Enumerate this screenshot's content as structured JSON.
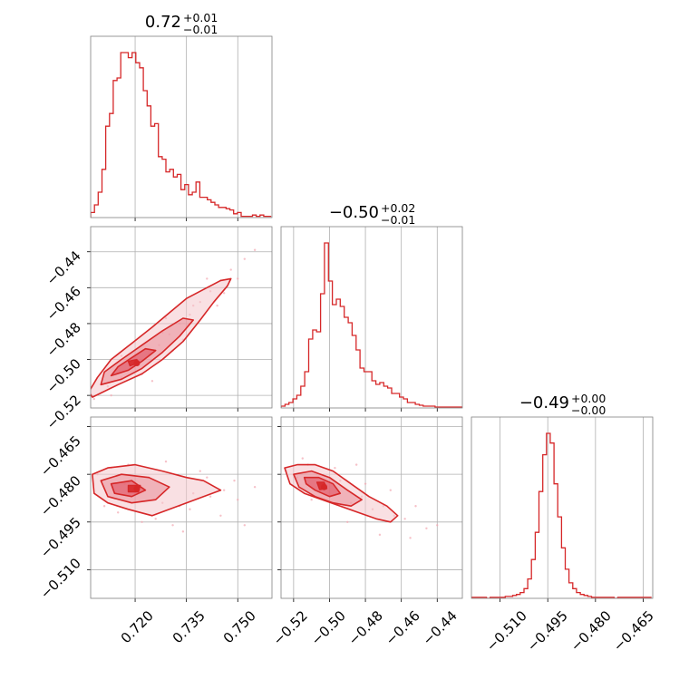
{
  "figure": {
    "type": "corner",
    "color": "#d62728",
    "fill_color": "#f4c6cc"
  },
  "chart_data": [
    {
      "id": "hist_p0",
      "type": "bar",
      "title": {
        "value": "0.72",
        "sup": "+0.01",
        "sub": "−0.01"
      },
      "xlim": [
        0.707,
        0.76
      ],
      "grid_x": [
        0.72,
        0.735,
        0.75
      ],
      "x_start": 0.707,
      "bin_width": 0.0011,
      "values": [
        4,
        10,
        20,
        38,
        72,
        82,
        108,
        110,
        130,
        130,
        126,
        130,
        122,
        118,
        100,
        88,
        72,
        74,
        48,
        46,
        36,
        38,
        32,
        34,
        22,
        26,
        18,
        20,
        28,
        16,
        16,
        14,
        12,
        10,
        8,
        8,
        7,
        6,
        3,
        4,
        1,
        1,
        1,
        2,
        1,
        2,
        1,
        1
      ]
    },
    {
      "id": "hist_p1",
      "type": "bar",
      "title": {
        "value": "−0.50",
        "sup": "+0.02",
        "sub": "−0.01"
      },
      "xlim": [
        -0.527,
        -0.426
      ],
      "grid_x": [
        -0.52,
        -0.5,
        -0.48,
        -0.46,
        -0.44
      ],
      "x_start": -0.527,
      "bin_width": 0.0022,
      "values": [
        2,
        4,
        6,
        10,
        14,
        24,
        40,
        76,
        86,
        84,
        126,
        182,
        140,
        114,
        120,
        112,
        100,
        94,
        80,
        64,
        44,
        40,
        40,
        30,
        26,
        28,
        24,
        22,
        16,
        16,
        12,
        10,
        6,
        6,
        4,
        3,
        2,
        2,
        2,
        1,
        1,
        1,
        1,
        1,
        1,
        1
      ]
    },
    {
      "id": "hist_p2",
      "type": "bar",
      "title": {
        "value": "−0.49",
        "sup": "+0.00",
        "sub": "−0.00"
      },
      "xlim": [
        -0.519,
        -0.462
      ],
      "grid_x": [
        -0.51,
        -0.495,
        -0.48,
        -0.465
      ],
      "x_start": -0.519,
      "bin_width": 0.00118,
      "values": [
        1,
        1,
        1,
        1,
        0,
        1,
        1,
        1,
        1,
        2,
        2,
        3,
        4,
        6,
        10,
        20,
        40,
        68,
        110,
        148,
        170,
        160,
        118,
        84,
        52,
        30,
        16,
        10,
        6,
        4,
        3,
        2,
        1,
        1,
        1,
        1,
        1,
        1,
        0,
        1,
        1,
        1,
        1,
        1,
        1,
        1,
        1,
        1
      ]
    },
    {
      "id": "scatter_p0_p1",
      "type": "scatter",
      "xlim": [
        0.707,
        0.76
      ],
      "ylim": [
        -0.527,
        -0.426
      ],
      "grid_x": [
        0.72,
        0.735,
        0.75
      ],
      "grid_y": [
        -0.44,
        -0.46,
        -0.48,
        -0.5,
        -0.52
      ],
      "mean": [
        0.7205,
        -0.502
      ],
      "points": [
        [
          0.708,
          -0.522
        ],
        [
          0.712,
          -0.515
        ],
        [
          0.716,
          -0.51
        ],
        [
          0.719,
          -0.505
        ],
        [
          0.721,
          -0.503
        ],
        [
          0.724,
          -0.497
        ],
        [
          0.727,
          -0.492
        ],
        [
          0.73,
          -0.486
        ],
        [
          0.733,
          -0.48
        ],
        [
          0.736,
          -0.475
        ],
        [
          0.739,
          -0.468
        ],
        [
          0.742,
          -0.462
        ],
        [
          0.745,
          -0.456
        ],
        [
          0.748,
          -0.45
        ],
        [
          0.752,
          -0.444
        ],
        [
          0.755,
          -0.439
        ],
        [
          0.718,
          -0.5
        ],
        [
          0.722,
          -0.508
        ],
        [
          0.728,
          -0.485
        ],
        [
          0.731,
          -0.495
        ],
        [
          0.737,
          -0.47
        ],
        [
          0.744,
          -0.47
        ],
        [
          0.741,
          -0.455
        ],
        [
          0.75,
          -0.455
        ],
        [
          0.713,
          -0.52
        ],
        [
          0.725,
          -0.512
        ],
        [
          0.734,
          -0.489
        ],
        [
          0.729,
          -0.477
        ],
        [
          0.746,
          -0.463
        ],
        [
          0.716,
          -0.498
        ]
      ],
      "contours": [
        {
          "level": "outer",
          "points": [
            [
              0.7075,
              -0.521
            ],
            [
              0.715,
              -0.514
            ],
            [
              0.722,
              -0.508
            ],
            [
              0.728,
              -0.5
            ],
            [
              0.734,
              -0.49
            ],
            [
              0.739,
              -0.478
            ],
            [
              0.743,
              -0.468
            ],
            [
              0.747,
              -0.459
            ],
            [
              0.748,
              -0.455
            ],
            [
              0.745,
              -0.456
            ],
            [
              0.74,
              -0.461
            ],
            [
              0.735,
              -0.466
            ],
            [
              0.73,
              -0.474
            ],
            [
              0.725,
              -0.482
            ],
            [
              0.719,
              -0.491
            ],
            [
              0.713,
              -0.5
            ],
            [
              0.709,
              -0.51
            ],
            [
              0.7065,
              -0.518
            ]
          ]
        },
        {
          "level": "mid",
          "points": [
            [
              0.71,
              -0.514
            ],
            [
              0.716,
              -0.511
            ],
            [
              0.722,
              -0.505
            ],
            [
              0.728,
              -0.496
            ],
            [
              0.733,
              -0.487
            ],
            [
              0.737,
              -0.478
            ],
            [
              0.734,
              -0.477
            ],
            [
              0.728,
              -0.484
            ],
            [
              0.722,
              -0.492
            ],
            [
              0.716,
              -0.5
            ],
            [
              0.711,
              -0.507
            ]
          ]
        },
        {
          "level": "inner",
          "points": [
            [
              0.713,
              -0.509
            ],
            [
              0.718,
              -0.506
            ],
            [
              0.722,
              -0.501
            ],
            [
              0.726,
              -0.495
            ],
            [
              0.723,
              -0.494
            ],
            [
              0.719,
              -0.499
            ],
            [
              0.715,
              -0.504
            ]
          ]
        },
        {
          "level": "core",
          "points": [
            [
              0.7185,
              -0.5035
            ],
            [
              0.721,
              -0.502
            ],
            [
              0.7205,
              -0.5
            ],
            [
              0.718,
              -0.501
            ]
          ]
        }
      ]
    },
    {
      "id": "scatter_p0_p2",
      "type": "scatter",
      "xlim": [
        0.707,
        0.76
      ],
      "ylim": [
        -0.519,
        -0.462
      ],
      "grid_x": [
        0.72,
        0.735,
        0.75
      ],
      "grid_y": [
        -0.465,
        -0.48,
        -0.495,
        -0.51
      ],
      "mean": [
        0.7205,
        -0.4845
      ],
      "points": [
        [
          0.709,
          -0.48
        ],
        [
          0.713,
          -0.478
        ],
        [
          0.717,
          -0.483
        ],
        [
          0.72,
          -0.486
        ],
        [
          0.724,
          -0.481
        ],
        [
          0.728,
          -0.489
        ],
        [
          0.733,
          -0.49
        ],
        [
          0.737,
          -0.486
        ],
        [
          0.742,
          -0.487
        ],
        [
          0.746,
          -0.485
        ],
        [
          0.75,
          -0.488
        ],
        [
          0.755,
          -0.484
        ],
        [
          0.711,
          -0.49
        ],
        [
          0.715,
          -0.492
        ],
        [
          0.726,
          -0.494
        ],
        [
          0.731,
          -0.496
        ],
        [
          0.736,
          -0.491
        ],
        [
          0.741,
          -0.481
        ],
        [
          0.745,
          -0.493
        ],
        [
          0.749,
          -0.482
        ],
        [
          0.752,
          -0.496
        ],
        [
          0.729,
          -0.476
        ],
        [
          0.718,
          -0.477
        ],
        [
          0.722,
          -0.495
        ],
        [
          0.739,
          -0.479
        ],
        [
          0.734,
          -0.498
        ]
      ],
      "contours": [
        {
          "level": "outer",
          "points": [
            [
              0.7075,
              -0.48
            ],
            [
              0.712,
              -0.478
            ],
            [
              0.72,
              -0.477
            ],
            [
              0.728,
              -0.479
            ],
            [
              0.735,
              -0.481
            ],
            [
              0.74,
              -0.482
            ],
            [
              0.745,
              -0.485
            ],
            [
              0.74,
              -0.487
            ],
            [
              0.735,
              -0.489
            ],
            [
              0.73,
              -0.491
            ],
            [
              0.725,
              -0.493
            ],
            [
              0.718,
              -0.491
            ],
            [
              0.712,
              -0.489
            ],
            [
              0.708,
              -0.486
            ]
          ]
        },
        {
          "level": "mid",
          "points": [
            [
              0.71,
              -0.482
            ],
            [
              0.716,
              -0.48
            ],
            [
              0.724,
              -0.481
            ],
            [
              0.73,
              -0.484
            ],
            [
              0.726,
              -0.488
            ],
            [
              0.719,
              -0.489
            ],
            [
              0.712,
              -0.487
            ]
          ]
        },
        {
          "level": "inner",
          "points": [
            [
              0.713,
              -0.483
            ],
            [
              0.719,
              -0.482
            ],
            [
              0.723,
              -0.485
            ],
            [
              0.719,
              -0.487
            ],
            [
              0.714,
              -0.486
            ]
          ]
        },
        {
          "level": "core",
          "points": [
            [
              0.718,
              -0.4835
            ],
            [
              0.7215,
              -0.4835
            ],
            [
              0.721,
              -0.4855
            ],
            [
              0.718,
              -0.4855
            ]
          ]
        }
      ]
    },
    {
      "id": "scatter_p1_p2",
      "type": "scatter",
      "xlim": [
        -0.527,
        -0.426
      ],
      "ylim": [
        -0.519,
        -0.462
      ],
      "grid_x": [
        -0.52,
        -0.5,
        -0.48,
        -0.46,
        -0.44
      ],
      "grid_y": [
        -0.465,
        -0.48,
        -0.495,
        -0.51
      ],
      "mean": [
        -0.503,
        -0.484
      ],
      "points": [
        [
          -0.524,
          -0.479
        ],
        [
          -0.518,
          -0.481
        ],
        [
          -0.512,
          -0.477
        ],
        [
          -0.506,
          -0.484
        ],
        [
          -0.5,
          -0.486
        ],
        [
          -0.494,
          -0.482
        ],
        [
          -0.488,
          -0.489
        ],
        [
          -0.482,
          -0.487
        ],
        [
          -0.476,
          -0.491
        ],
        [
          -0.47,
          -0.49
        ],
        [
          -0.464,
          -0.493
        ],
        [
          -0.458,
          -0.494
        ],
        [
          -0.452,
          -0.49
        ],
        [
          -0.446,
          -0.497
        ],
        [
          -0.44,
          -0.496
        ],
        [
          -0.51,
          -0.488
        ],
        [
          -0.497,
          -0.478
        ],
        [
          -0.49,
          -0.495
        ],
        [
          -0.48,
          -0.483
        ],
        [
          -0.472,
          -0.499
        ],
        [
          -0.466,
          -0.485
        ],
        [
          -0.455,
          -0.5
        ],
        [
          -0.515,
          -0.475
        ],
        [
          -0.485,
          -0.477
        ]
      ],
      "contours": [
        {
          "level": "outer",
          "points": [
            [
              -0.525,
              -0.478
            ],
            [
              -0.518,
              -0.477
            ],
            [
              -0.508,
              -0.477
            ],
            [
              -0.498,
              -0.479
            ],
            [
              -0.488,
              -0.483
            ],
            [
              -0.478,
              -0.487
            ],
            [
              -0.468,
              -0.49
            ],
            [
              -0.462,
              -0.493
            ],
            [
              -0.466,
              -0.495
            ],
            [
              -0.474,
              -0.494
            ],
            [
              -0.484,
              -0.492
            ],
            [
              -0.494,
              -0.49
            ],
            [
              -0.504,
              -0.488
            ],
            [
              -0.514,
              -0.486
            ],
            [
              -0.522,
              -0.483
            ]
          ]
        },
        {
          "level": "mid",
          "points": [
            [
              -0.52,
              -0.48
            ],
            [
              -0.51,
              -0.479
            ],
            [
              -0.5,
              -0.481
            ],
            [
              -0.49,
              -0.485
            ],
            [
              -0.482,
              -0.488
            ],
            [
              -0.488,
              -0.49
            ],
            [
              -0.498,
              -0.489
            ],
            [
              -0.508,
              -0.487
            ],
            [
              -0.517,
              -0.484
            ]
          ]
        },
        {
          "level": "inner",
          "points": [
            [
              -0.514,
              -0.481
            ],
            [
              -0.506,
              -0.481
            ],
            [
              -0.498,
              -0.483
            ],
            [
              -0.494,
              -0.486
            ],
            [
              -0.5,
              -0.487
            ],
            [
              -0.508,
              -0.485
            ],
            [
              -0.513,
              -0.483
            ]
          ]
        },
        {
          "level": "core",
          "points": [
            [
              -0.507,
              -0.4825
            ],
            [
              -0.503,
              -0.4825
            ],
            [
              -0.5015,
              -0.4845
            ],
            [
              -0.5055,
              -0.4848
            ]
          ]
        }
      ]
    }
  ],
  "axis_ticks": {
    "col0_x": [
      "0.720",
      "0.735",
      "0.750"
    ],
    "col1_x": [
      "−0.52",
      "−0.50",
      "−0.48",
      "−0.46",
      "−0.44"
    ],
    "col2_x": [
      "−0.510",
      "−0.495",
      "−0.480",
      "−0.465"
    ],
    "row1_y": [
      "−0.44",
      "−0.46",
      "−0.48",
      "−0.50",
      "−0.52"
    ],
    "row2_y": [
      "−0.465",
      "−0.480",
      "−0.495",
      "−0.510"
    ]
  }
}
